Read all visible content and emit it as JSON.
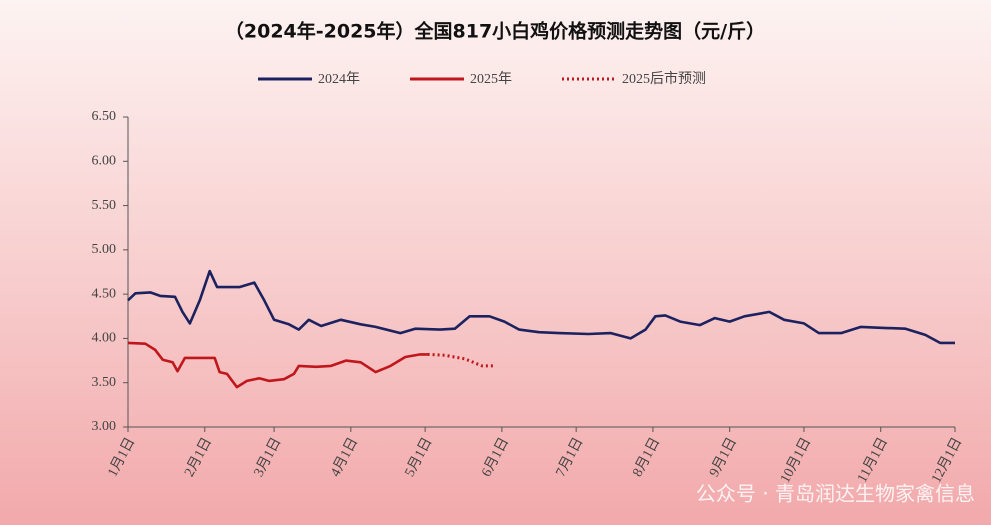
{
  "chart_data": {
    "type": "line",
    "title": "（2024年-2025年）全国817小白鸡价格预测走势图（元/斤）",
    "watermark": "公众号 · 青岛润达生物家禽信息",
    "xlim": [
      0,
      334
    ],
    "xticks": [
      {
        "value": 0,
        "label": "1月1日"
      },
      {
        "value": 31,
        "label": "2月1日"
      },
      {
        "value": 59,
        "label": "3月1日"
      },
      {
        "value": 90,
        "label": "4月1日"
      },
      {
        "value": 120,
        "label": "5月1日"
      },
      {
        "value": 151,
        "label": "6月1日"
      },
      {
        "value": 181,
        "label": "7月1日"
      },
      {
        "value": 212,
        "label": "8月1日"
      },
      {
        "value": 243,
        "label": "9月1日"
      },
      {
        "value": 273,
        "label": "10月1日"
      },
      {
        "value": 304,
        "label": "11月1日"
      },
      {
        "value": 334,
        "label": "12月1日"
      }
    ],
    "ylim": [
      3.0,
      6.5
    ],
    "yticks": [
      {
        "value": 3.0,
        "label": "3.00"
      },
      {
        "value": 3.5,
        "label": "3.50"
      },
      {
        "value": 4.0,
        "label": "4.00"
      },
      {
        "value": 4.5,
        "label": "4.50"
      },
      {
        "value": 5.0,
        "label": "5.00"
      },
      {
        "value": 5.5,
        "label": "5.50"
      },
      {
        "value": 6.0,
        "label": "6.00"
      },
      {
        "value": 6.5,
        "label": "6.50"
      }
    ],
    "series": [
      {
        "name": "2024年",
        "color": "#1c2260",
        "dash": "solid",
        "x": [
          0,
          3,
          9,
          13,
          19,
          22,
          25,
          29,
          33,
          36,
          45,
          51,
          55,
          59,
          65,
          69,
          73,
          78,
          86,
          94,
          100,
          110,
          116,
          126,
          132,
          138,
          146,
          152,
          158,
          166,
          174,
          186,
          195,
          203,
          209,
          213,
          217,
          223,
          231,
          237,
          243,
          249,
          259,
          265,
          273,
          279,
          288,
          296,
          304,
          314,
          322,
          328,
          334
        ],
        "values": [
          4.43,
          4.51,
          4.52,
          4.48,
          4.47,
          4.3,
          4.17,
          4.43,
          4.76,
          4.58,
          4.58,
          4.63,
          4.43,
          4.21,
          4.16,
          4.1,
          4.21,
          4.14,
          4.21,
          4.16,
          4.13,
          4.06,
          4.11,
          4.1,
          4.11,
          4.25,
          4.25,
          4.19,
          4.1,
          4.07,
          4.06,
          4.05,
          4.06,
          4.0,
          4.1,
          4.25,
          4.26,
          4.19,
          4.15,
          4.23,
          4.19,
          4.25,
          4.3,
          4.21,
          4.17,
          4.06,
          4.06,
          4.13,
          4.12,
          4.11,
          4.04,
          3.95,
          3.95
        ]
      },
      {
        "name": "2025年",
        "color": "#c0171c",
        "dash": "solid",
        "x": [
          0,
          7,
          11,
          14,
          18,
          20,
          23,
          29,
          35,
          37,
          40,
          44,
          48,
          53,
          57,
          63,
          67,
          69,
          76,
          82,
          88,
          94,
          100,
          106,
          112,
          118,
          121
        ],
        "values": [
          3.95,
          3.94,
          3.87,
          3.76,
          3.73,
          3.63,
          3.78,
          3.78,
          3.78,
          3.62,
          3.6,
          3.45,
          3.52,
          3.55,
          3.52,
          3.54,
          3.6,
          3.69,
          3.68,
          3.69,
          3.75,
          3.73,
          3.62,
          3.69,
          3.79,
          3.82,
          3.82
        ]
      },
      {
        "name": "2025后市预测",
        "color": "#c0171c",
        "dash": "dotted",
        "x": [
          121,
          128,
          136,
          143,
          148
        ],
        "values": [
          3.82,
          3.81,
          3.77,
          3.69,
          3.69
        ]
      }
    ]
  }
}
